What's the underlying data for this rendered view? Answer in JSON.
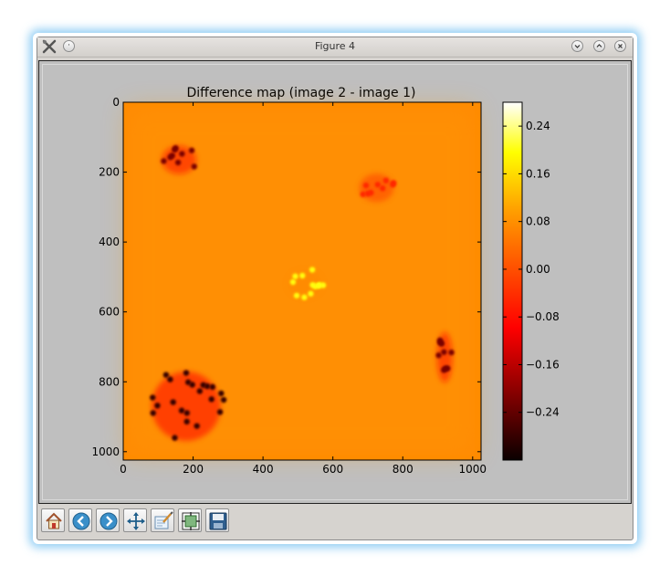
{
  "window": {
    "title": "Figure 4"
  },
  "toolbar": {
    "tools": [
      {
        "name": "home-icon"
      },
      {
        "name": "back-icon"
      },
      {
        "name": "forward-icon"
      },
      {
        "name": "pan-icon"
      },
      {
        "name": "zoom-rect-icon"
      },
      {
        "name": "subplots-icon"
      },
      {
        "name": "save-icon"
      }
    ]
  },
  "chart_data": {
    "type": "heatmap",
    "title": "Difference map (image 2 - image 1)",
    "xlabel": "",
    "ylabel": "",
    "xlim": [
      0,
      1024
    ],
    "ylim": [
      1024,
      0
    ],
    "xticks": [
      "0",
      "200",
      "400",
      "600",
      "800",
      "1000"
    ],
    "yticks": [
      "0",
      "200",
      "400",
      "600",
      "800",
      "1000"
    ],
    "colormap": "hot",
    "background_value": 0.03,
    "colorbar": {
      "ticks": [
        "0.24",
        "0.16",
        "0.08",
        "0.00",
        "−0.08",
        "−0.16",
        "−0.24"
      ],
      "range": [
        -0.32,
        0.28
      ]
    },
    "features": [
      {
        "label": "negative-cluster",
        "x": 160,
        "y": 165,
        "value": -0.22
      },
      {
        "label": "faint-negative-cluster",
        "x": 725,
        "y": 245,
        "value": -0.05
      },
      {
        "label": "positive-cluster",
        "x": 520,
        "y": 520,
        "value": 0.2
      },
      {
        "label": "negative-cluster",
        "x": 920,
        "y": 730,
        "value": -0.22
      },
      {
        "label": "negative-cluster",
        "x": 180,
        "y": 870,
        "value": -0.28
      }
    ]
  }
}
